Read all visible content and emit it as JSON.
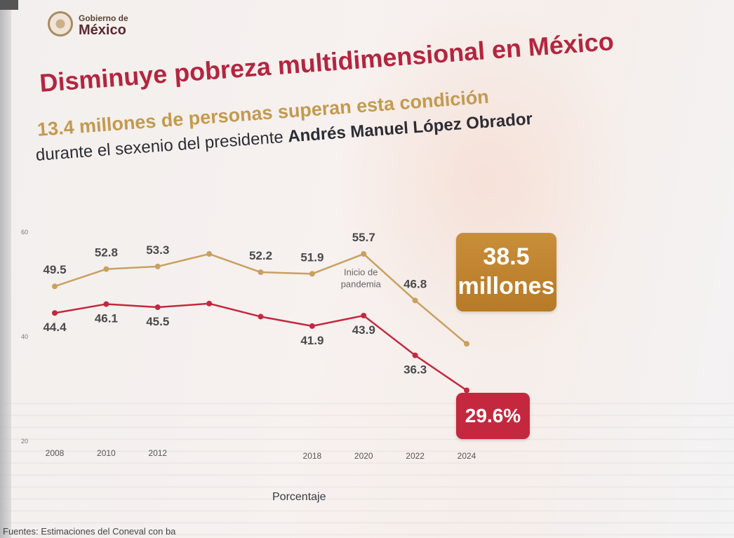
{
  "header": {
    "logo_line1": "Gobierno de",
    "logo_line2": "México",
    "title": "Disminuye pobreza multidimensional en México",
    "subtitle": "13.4 millones de personas superan esta condición",
    "line3_prefix": "durante el sexenio del presidente ",
    "line3_name": "Andrés Manuel López Obrador"
  },
  "badges": {
    "amber_line1": "38.5",
    "amber_line2": "millones",
    "red": "29.6%"
  },
  "footer": {
    "unit_label": "Porcentaje",
    "source": "Fuentes: Estimaciones del Coneval con ba"
  },
  "annotation": {
    "line1": "Inicio de",
    "line2": "pandemia"
  },
  "colors": {
    "title": "#b3263f",
    "subtitle": "#c39a4f",
    "series_upper": "#c9a060",
    "series_lower": "#c4283f",
    "badge_amber": "#c98e3a",
    "badge_red": "#c4283f"
  },
  "chart_data": {
    "type": "line",
    "x": [
      2008,
      2010,
      2012,
      2014,
      2016,
      2018,
      2020,
      2022,
      2024
    ],
    "x_tick_labels": [
      "2008",
      "2010",
      "2012",
      "2018",
      "2020",
      "2022",
      "2024"
    ],
    "x_tick_years": [
      2008,
      2010,
      2012,
      2018,
      2020,
      2022,
      2024
    ],
    "y_ticks": [
      20,
      40,
      60
    ],
    "ylim": [
      20,
      60
    ],
    "ylabel": "Porcentaje",
    "series": [
      {
        "values": [
          49.5,
          52.8,
          53.3,
          55.7,
          52.2,
          51.9,
          55.7,
          46.8,
          38.5
        ],
        "labels": [
          "49.5",
          "52.8",
          "53.3",
          "",
          "52.2",
          "51.9",
          "55.7",
          "46.8",
          ""
        ]
      },
      {
        "values": [
          44.4,
          46.1,
          45.5,
          46.2,
          43.7,
          41.9,
          43.9,
          36.3,
          29.6
        ],
        "labels": [
          "44.4",
          "46.1",
          "45.5",
          "",
          "",
          "41.9",
          "43.9",
          "36.3",
          ""
        ]
      }
    ],
    "grid": false,
    "legend": "none"
  }
}
